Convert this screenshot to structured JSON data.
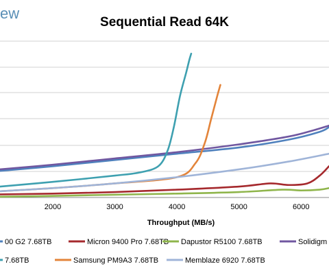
{
  "brand_fragment": "ew",
  "chart_data": {
    "type": "line",
    "title": "Sequential Read 64K",
    "xlabel": "Throughput (MB/s)",
    "ylabel": "",
    "xlim": [
      1150,
      6450
    ],
    "ylim": [
      0,
      100
    ],
    "x_ticks": [
      2000,
      3000,
      4000,
      5000,
      6000
    ],
    "grid": "horizontal",
    "legend_position": "bottom",
    "series": [
      {
        "name": "...00 G2 7.68TB",
        "color": "#4f81bd",
        "points": [
          [
            1150,
            17
          ],
          [
            2000,
            20
          ],
          [
            3000,
            24
          ],
          [
            4000,
            28
          ],
          [
            5000,
            32
          ],
          [
            5800,
            37
          ],
          [
            6300,
            42
          ],
          [
            6450,
            45
          ]
        ]
      },
      {
        "name": "Micron 9400 Pro 7.68TB",
        "color": "#a5292d",
        "points": [
          [
            1150,
            2
          ],
          [
            2000,
            2.5
          ],
          [
            3000,
            3.5
          ],
          [
            4000,
            5
          ],
          [
            5000,
            7
          ],
          [
            5500,
            9
          ],
          [
            5800,
            8
          ],
          [
            6100,
            9
          ],
          [
            6300,
            14
          ],
          [
            6450,
            20
          ]
        ]
      },
      {
        "name": "Dapustor R5100 7.68TB",
        "color": "#8fb54b",
        "points": [
          [
            1150,
            0.5
          ],
          [
            2000,
            1
          ],
          [
            3000,
            1.8
          ],
          [
            4000,
            2.5
          ],
          [
            5000,
            3.5
          ],
          [
            5700,
            5
          ],
          [
            6000,
            4.5
          ],
          [
            6300,
            5
          ],
          [
            6450,
            6
          ]
        ]
      },
      {
        "name": "Solidigm",
        "color": "#7057a0",
        "points": [
          [
            1150,
            18
          ],
          [
            2000,
            21
          ],
          [
            3000,
            25
          ],
          [
            4000,
            29
          ],
          [
            5000,
            34
          ],
          [
            5800,
            39
          ],
          [
            6200,
            43
          ],
          [
            6450,
            46
          ]
        ]
      },
      {
        "name": "...7.68TB",
        "color": "#3ea0b0",
        "points": [
          [
            1150,
            7
          ],
          [
            2000,
            10
          ],
          [
            3000,
            14
          ],
          [
            3400,
            16
          ],
          [
            3700,
            20
          ],
          [
            3850,
            30
          ],
          [
            3950,
            45
          ],
          [
            4050,
            65
          ],
          [
            4150,
            80
          ],
          [
            4200,
            88
          ],
          [
            4230,
            92
          ]
        ]
      },
      {
        "name": "Samsung PM9A3 7.68TB",
        "color": "#e3843a",
        "points": [
          [
            1150,
            4
          ],
          [
            2000,
            6
          ],
          [
            3000,
            9
          ],
          [
            4000,
            13
          ],
          [
            4300,
            22
          ],
          [
            4450,
            35
          ],
          [
            4550,
            50
          ],
          [
            4650,
            65
          ],
          [
            4700,
            72
          ]
        ]
      },
      {
        "name": "Memblaze 6920 7.68TB",
        "color": "#9fb4d8",
        "points": [
          [
            1150,
            4
          ],
          [
            2000,
            6
          ],
          [
            3000,
            9
          ],
          [
            4000,
            13
          ],
          [
            5000,
            18
          ],
          [
            5800,
            23
          ],
          [
            6450,
            28
          ]
        ]
      }
    ],
    "legend": [
      {
        "label": "00 G2 7.68TB",
        "color": "#4f81bd"
      },
      {
        "label": "Micron 9400 Pro 7.68TB",
        "color": "#a5292d"
      },
      {
        "label": "Dapustor R5100 7.68TB",
        "color": "#8fb54b"
      },
      {
        "label": "Solidigm",
        "color": "#7057a0"
      },
      {
        "label": "7.68TB",
        "color": "#3ea0b0"
      },
      {
        "label": "Samsung PM9A3 7.68TB",
        "color": "#e3843a"
      },
      {
        "label": "Memblaze 6920 7.68TB",
        "color": "#9fb4d8"
      }
    ]
  }
}
